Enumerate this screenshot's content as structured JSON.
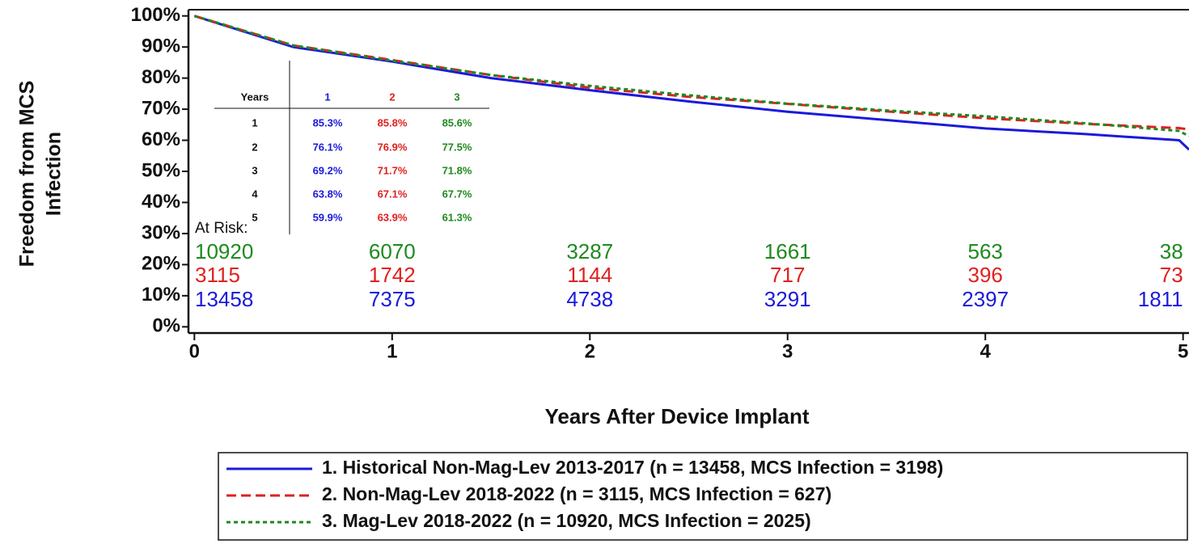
{
  "chart_data": {
    "type": "line",
    "y_label": [
      "Freedom from MCS",
      "Infection"
    ],
    "x_label": "Years After Device Implant",
    "xlim": [
      -0.03,
      5.03
    ],
    "xticks": [
      0,
      1,
      2,
      3,
      4,
      5
    ],
    "ylim": [
      -2,
      102
    ],
    "yticks": [
      {
        "value": 0,
        "label": "0%"
      },
      {
        "value": 10,
        "label": "10%"
      },
      {
        "value": 20,
        "label": "20%"
      },
      {
        "value": 30,
        "label": "30%"
      },
      {
        "value": 40,
        "label": "40%"
      },
      {
        "value": 50,
        "label": "50%"
      },
      {
        "value": 60,
        "label": "60%"
      },
      {
        "value": 70,
        "label": "70%"
      },
      {
        "value": 80,
        "label": "80%"
      },
      {
        "value": 90,
        "label": "90%"
      },
      {
        "value": 100,
        "label": "100%"
      }
    ],
    "x": [
      0,
      0.5,
      1,
      1.5,
      2,
      2.5,
      3,
      3.5,
      4,
      4.5,
      4.98,
      5.03
    ],
    "series": [
      {
        "name": "1. Historical Non-Mag-Lev 2013-2017 (n = 13458, MCS Infection = 3198)",
        "color": "#1a1adc",
        "dash": "solid",
        "values": [
          100,
          90,
          85.3,
          80,
          76.1,
          72.5,
          69.2,
          66.5,
          63.8,
          62,
          60,
          57
        ],
        "at_risk": [
          "13458",
          "7375",
          "4738",
          "3291",
          "2397",
          "1811"
        ]
      },
      {
        "name": "2. Non-Mag-Lev 2018-2022 (n = 3115, MCS Infection = 627)",
        "color": "#e02020",
        "dash": "dashed",
        "values": [
          100,
          90.5,
          85.8,
          81,
          76.9,
          74,
          71.7,
          69.3,
          67.1,
          65.3,
          63.9,
          63.5
        ],
        "at_risk": [
          "3115",
          "1742",
          "1144",
          "717",
          "396",
          "73"
        ]
      },
      {
        "name": "3. Mag-Lev 2018-2022 (n = 10920, MCS Infection = 2025)",
        "color": "#1e8a1e",
        "dash": "dotted",
        "values": [
          100,
          90.5,
          85.6,
          81,
          77.5,
          74.5,
          71.8,
          69.6,
          67.7,
          65.5,
          63,
          61.3
        ],
        "at_risk": [
          "10920",
          "6070",
          "3287",
          "1661",
          "563",
          "38"
        ]
      }
    ],
    "at_risk_label": "At Risk:",
    "inset_table": {
      "header": [
        "Years",
        "1",
        "2",
        "3"
      ],
      "rows": [
        [
          "1",
          "85.3%",
          "85.8%",
          "85.6%"
        ],
        [
          "2",
          "76.1%",
          "76.9%",
          "77.5%"
        ],
        [
          "3",
          "69.2%",
          "71.7%",
          "71.8%"
        ],
        [
          "4",
          "63.8%",
          "67.1%",
          "67.7%"
        ],
        [
          "5",
          "59.9%",
          "63.9%",
          "61.3%"
        ]
      ]
    }
  }
}
